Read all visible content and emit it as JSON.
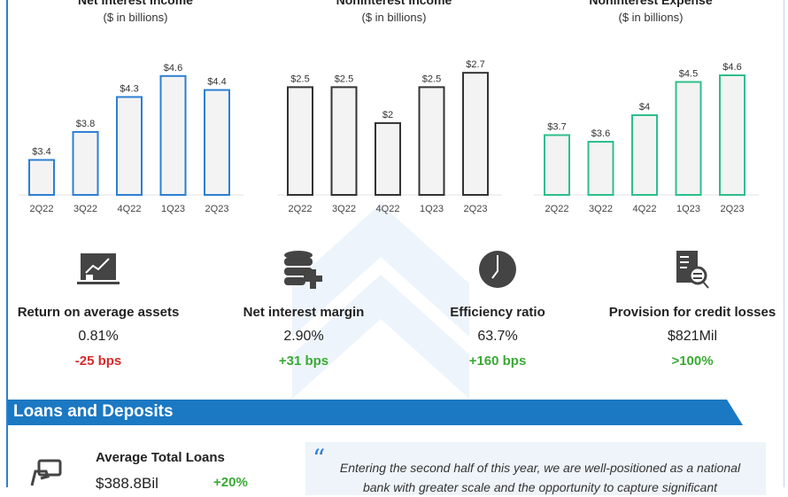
{
  "chart_data": [
    {
      "type": "bar",
      "title": "Net Interest Income",
      "subtitle": "($ in billions)",
      "categories": [
        "2Q22",
        "3Q22",
        "4Q22",
        "1Q23",
        "2Q23"
      ],
      "values": [
        3.4,
        3.8,
        4.3,
        4.6,
        4.4
      ],
      "labels": [
        "$3.4",
        "$3.8",
        "$4.3",
        "$4.6",
        "$4.4"
      ],
      "ylim": [
        2.9,
        4.8
      ],
      "color": "#2d7fd3"
    },
    {
      "type": "bar",
      "title": "Noninterest Income",
      "subtitle": "($ in billions)",
      "categories": [
        "2Q22",
        "3Q22",
        "4Q22",
        "1Q23",
        "2Q23"
      ],
      "values": [
        2.5,
        2.5,
        2.0,
        2.5,
        2.7
      ],
      "labels": [
        "$2.5",
        "$2.5",
        "$2",
        "$2.5",
        "$2.7"
      ],
      "ylim": [
        1.0,
        2.85
      ],
      "color": "#333333"
    },
    {
      "type": "bar",
      "title": "Noninterest Expense",
      "subtitle": "($ in billions)",
      "categories": [
        "2Q22",
        "3Q22",
        "4Q22",
        "1Q23",
        "2Q23"
      ],
      "values": [
        3.7,
        3.6,
        4.0,
        4.5,
        4.6
      ],
      "labels": [
        "$3.7",
        "$3.6",
        "$4",
        "$4.5",
        "$4.6"
      ],
      "ylim": [
        2.8,
        4.8
      ],
      "color": "#2dbf8a"
    }
  ],
  "metrics": [
    {
      "icon": "chart-board-icon",
      "label": "Return on average assets",
      "value": "0.81%",
      "change": "-25 bps",
      "change_color": "#d62b2b"
    },
    {
      "icon": "database-plus-icon",
      "label": "Net interest margin",
      "value": "2.90%",
      "change": "+31 bps",
      "change_color": "#3aa935"
    },
    {
      "icon": "clock-icon",
      "label": "Efficiency ratio",
      "value": "63.7%",
      "change": "+160 bps",
      "change_color": "#3aa935"
    },
    {
      "icon": "document-search-icon",
      "label": "Provision for credit losses",
      "value": "$821Mil",
      "change": "&gt;100%",
      "change_color": "#3aa935"
    }
  ],
  "section": {
    "title": "Loans and Deposits",
    "color": "#1b78c2"
  },
  "loans": {
    "label": "Average Total Loans",
    "value": "$388.8Bil",
    "change": "+20%"
  },
  "quote": {
    "mark": "“",
    "line1": "Entering the second half of this year, we are well-positioned as a national",
    "line2": "bank with greater scale and the opportunity to capture significant"
  }
}
